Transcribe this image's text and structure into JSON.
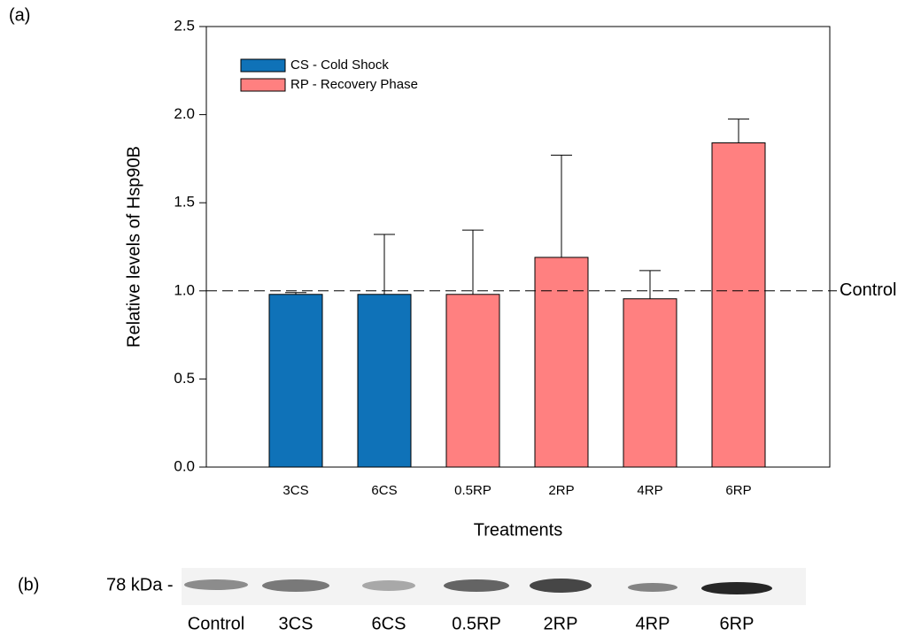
{
  "chart_data": {
    "type": "bar",
    "panel_label": "(a)",
    "x_label": "Treatments",
    "y_label": "Relative levels of Hsp90B",
    "categories": [
      "3CS",
      "6CS",
      "0.5RP",
      "2RP",
      "4RP",
      "6RP"
    ],
    "series": [
      {
        "name": "CS - Cold Shock",
        "color": "#0f72b8",
        "values": [
          0.98,
          0.98,
          null,
          null,
          null,
          null
        ],
        "errors": [
          0.01,
          0.34,
          null,
          null,
          null,
          null
        ]
      },
      {
        "name": "RP - Recovery Phase",
        "color": "#ff8080",
        "values": [
          null,
          null,
          0.98,
          1.19,
          0.955,
          1.84
        ],
        "errors": [
          null,
          null,
          0.365,
          0.58,
          0.16,
          0.135
        ]
      }
    ],
    "ylim": [
      0,
      2.5
    ],
    "yticks": [
      {
        "value": 0,
        "label": "0.0"
      },
      0.5,
      {
        "value": 1,
        "label": "1.0"
      },
      1.5,
      {
        "value": 2,
        "label": "2.0"
      },
      2.5
    ],
    "reference_line": {
      "value": 1,
      "label": "Control"
    },
    "legend": "upper left"
  },
  "blot": {
    "panel_label": "(b)",
    "marker": "78 kDa -",
    "lanes": [
      "Control",
      "3CS",
      "6CS",
      "0.5RP",
      "2RP",
      "4RP",
      "6RP"
    ]
  }
}
